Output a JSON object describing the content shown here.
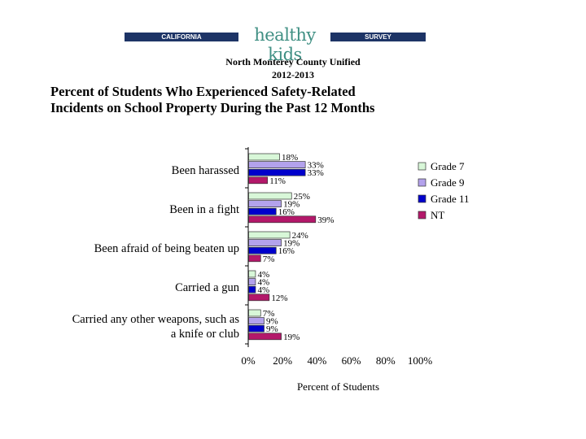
{
  "header": {
    "banner_left": "CALIFORNIA",
    "banner_logo": "healthy kids",
    "banner_right": "SURVEY",
    "district": "North Monterey County Unified",
    "year": "2012-2013"
  },
  "colors": {
    "grade7": "#d8f7d8",
    "grade9": "#b3a2ec",
    "grade11": "#0000cc",
    "nt": "#b3186a",
    "banner": "#1d3466",
    "logo": "#3f8f83"
  },
  "chart_data": {
    "type": "bar",
    "orientation": "horizontal",
    "title": "Percent of Students Who Experienced Safety-Related Incidents on School Property During the Past 12 Months",
    "title_lines": [
      "Percent of Students Who Experienced Safety-Related",
      "Incidents on School Property During the Past 12 Months"
    ],
    "xlabel": "Percent of Students",
    "xlim": [
      0,
      100
    ],
    "xticks": [
      "0%",
      "20%",
      "40%",
      "60%",
      "80%",
      "100%"
    ],
    "categories": [
      [
        "Been harassed"
      ],
      [
        "Been in a fight"
      ],
      [
        "Been afraid of being beaten up"
      ],
      [
        "Carried a gun"
      ],
      [
        "Carried any other weapons, such as",
        "a knife or club"
      ]
    ],
    "series": [
      {
        "name": "Grade 7",
        "values": [
          18,
          25,
          24,
          4,
          7
        ]
      },
      {
        "name": "Grade 9",
        "values": [
          33,
          19,
          19,
          4,
          9
        ]
      },
      {
        "name": "Grade 11",
        "values": [
          33,
          16,
          16,
          4,
          9
        ]
      },
      {
        "name": "NT",
        "values": [
          11,
          39,
          7,
          12,
          19
        ]
      }
    ],
    "legend_position": "right"
  }
}
